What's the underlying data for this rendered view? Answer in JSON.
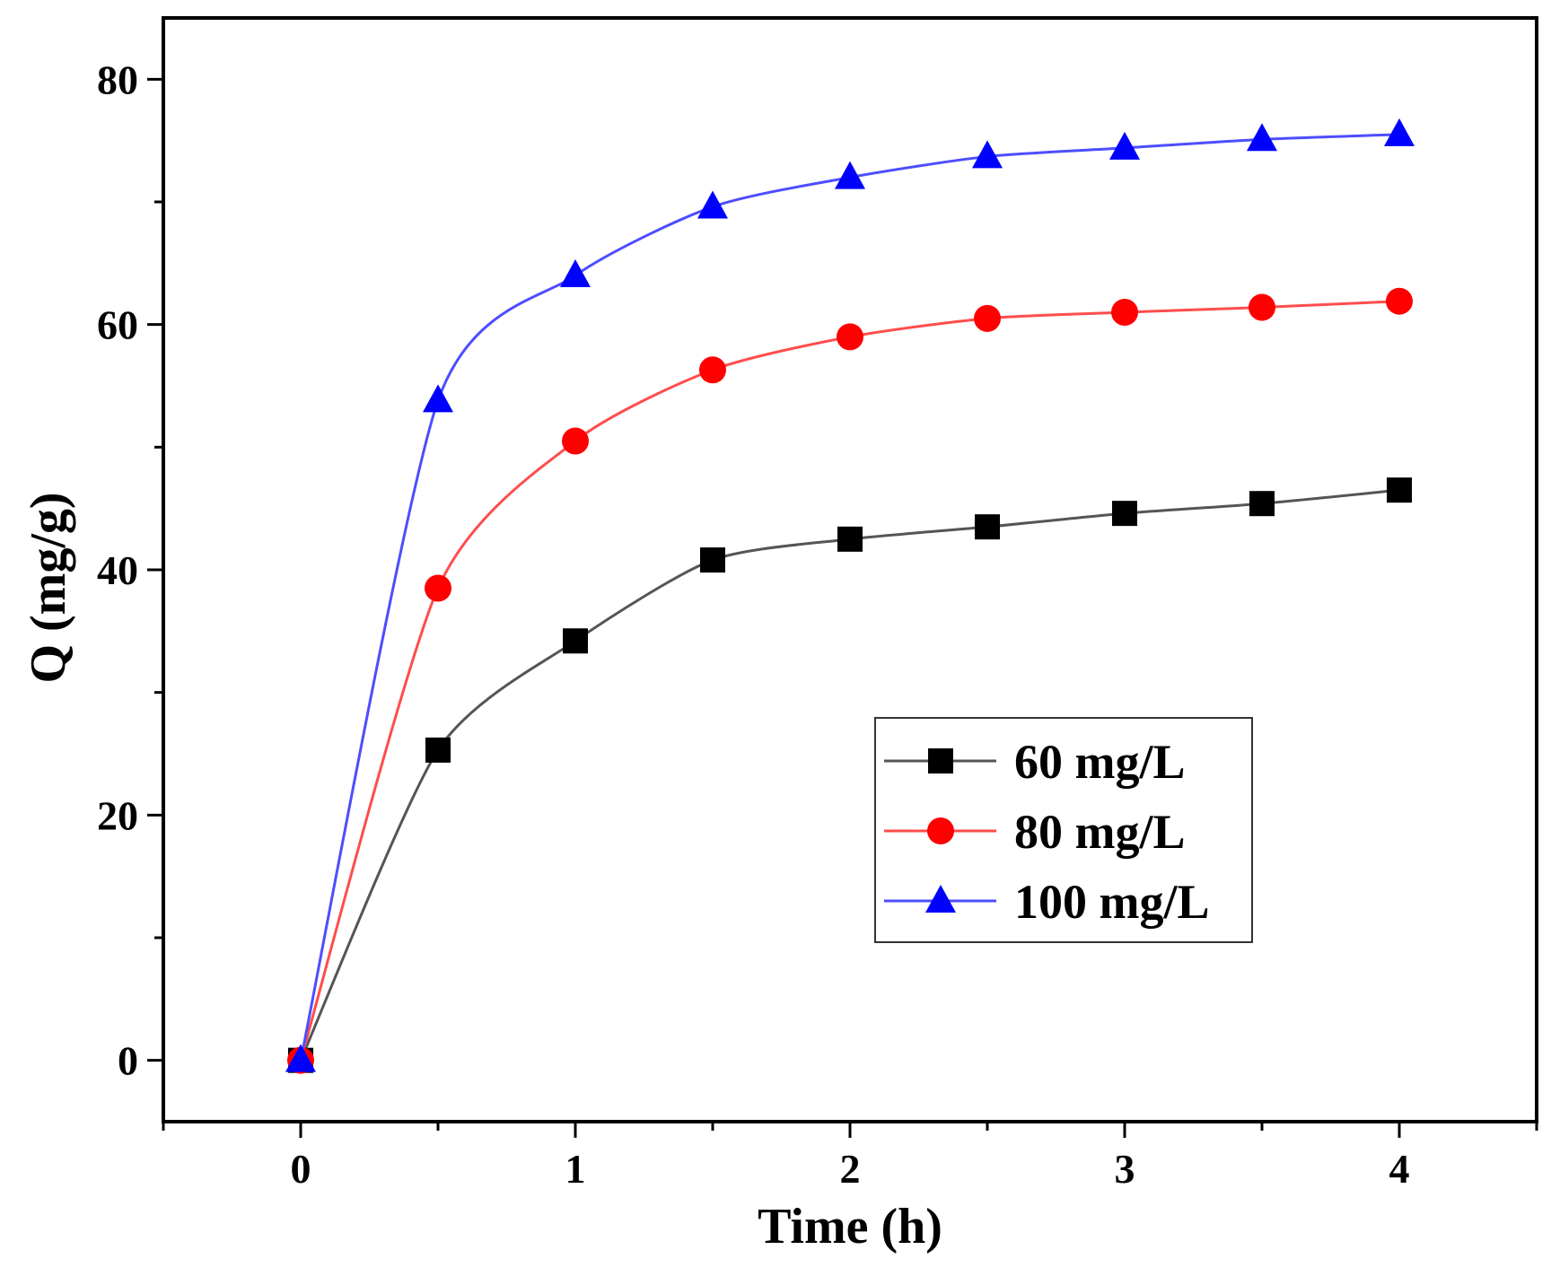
{
  "chart_data": {
    "type": "line",
    "title": "",
    "xlabel": "Time (h)",
    "ylabel": "Q (mg/g)",
    "xlim": [
      -0.5,
      4.5
    ],
    "ylim": [
      -5,
      85
    ],
    "xticks": [
      0,
      1,
      2,
      3,
      4
    ],
    "yticks": [
      0,
      20,
      40,
      60,
      80
    ],
    "x": [
      0,
      0.5,
      1,
      1.5,
      2,
      2.5,
      3,
      3.5,
      4
    ],
    "legend_position": "center-right",
    "series": [
      {
        "name": "60 mg/L",
        "marker": "square",
        "color": "#000000",
        "line_color": "#555555",
        "values": [
          0,
          25.3,
          34.2,
          40.8,
          42.5,
          43.5,
          44.6,
          45.4,
          46.5
        ]
      },
      {
        "name": "80 mg/L",
        "marker": "circle",
        "color": "#ff0000",
        "line_color": "#ff4d4d",
        "values": [
          0,
          38.5,
          50.5,
          56.3,
          59.0,
          60.5,
          61.0,
          61.4,
          61.9
        ]
      },
      {
        "name": "100 mg/L",
        "marker": "triangle",
        "color": "#0000ff",
        "line_color": "#4d4dff",
        "values": [
          0,
          53.8,
          64.0,
          69.6,
          72.0,
          73.7,
          74.4,
          75.1,
          75.5
        ]
      }
    ]
  }
}
